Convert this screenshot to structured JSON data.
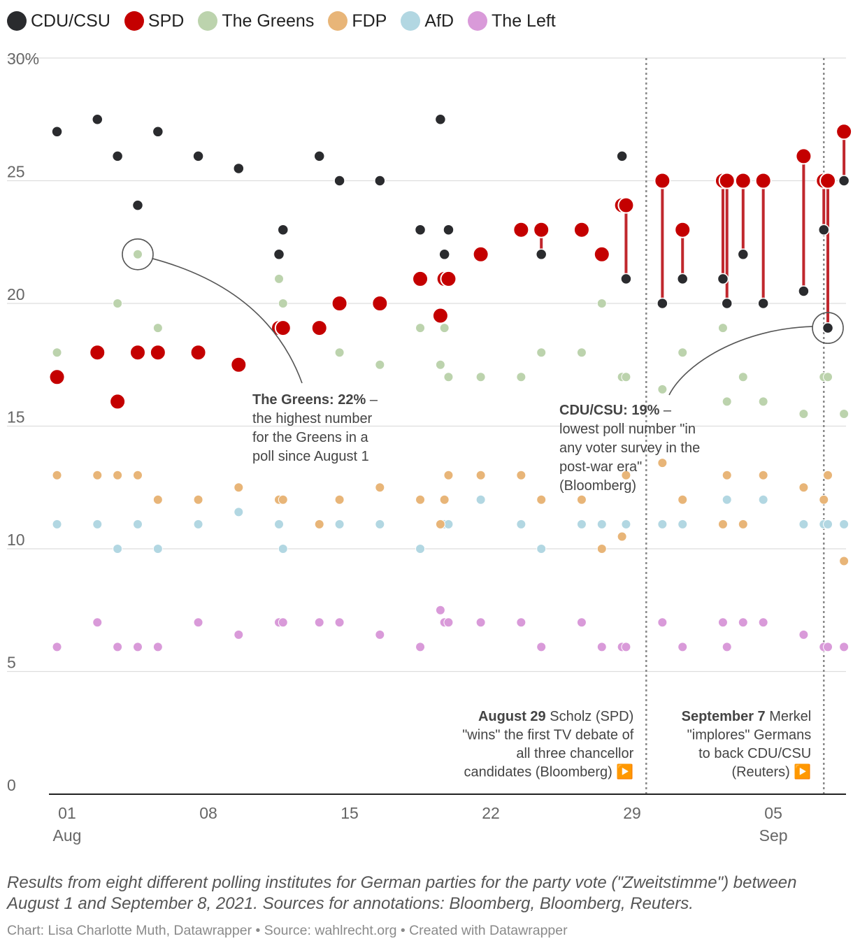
{
  "colors": {
    "CDU/CSU": "#2a2b2e",
    "SPD": "#c40000",
    "The Greens": "#bcd3ad",
    "FDP": "#e8b578",
    "AfD": "#b2d7e2",
    "The Left": "#d99ad9",
    "connector": "#c0272d",
    "grid": "#dddddd",
    "axis": "#222222",
    "annotation_line": "#555555"
  },
  "legend": [
    {
      "name": "CDU/CSU",
      "color": "#2a2b2e"
    },
    {
      "name": "SPD",
      "color": "#c40000"
    },
    {
      "name": "The Greens",
      "color": "#bcd3ad"
    },
    {
      "name": "FDP",
      "color": "#e8b578"
    },
    {
      "name": "AfD",
      "color": "#b2d7e2"
    },
    {
      "name": "The Left",
      "color": "#d99ad9"
    }
  ],
  "chart_data": {
    "type": "scatter",
    "title": "",
    "ylabel": "",
    "ylim": [
      0,
      30
    ],
    "yticks": [
      0,
      5,
      10,
      15,
      20,
      25,
      30
    ],
    "ytick_labels": [
      "0",
      "5",
      "10",
      "15",
      "20",
      "25",
      "30%"
    ],
    "xlim": [
      -0.9,
      38.6
    ],
    "xticks": [
      {
        "day": 0,
        "label": "01",
        "sublabel": "Aug"
      },
      {
        "day": 7,
        "label": "08",
        "sublabel": ""
      },
      {
        "day": 14,
        "label": "15",
        "sublabel": ""
      },
      {
        "day": 21,
        "label": "22",
        "sublabel": ""
      },
      {
        "day": 28,
        "label": "29",
        "sublabel": ""
      },
      {
        "day": 35,
        "label": "05",
        "sublabel": "Sep"
      }
    ],
    "x_unit": "days since Aug 1, 2021",
    "polls": [
      {
        "day": -0.5,
        "CDU/CSU": 27,
        "SPD": 17,
        "The Greens": 18,
        "FDP": 13,
        "AfD": 11,
        "The Left": 6
      },
      {
        "day": 1.5,
        "CDU/CSU": 27.5,
        "SPD": 18,
        "The Greens": null,
        "FDP": 13,
        "AfD": 11,
        "The Left": 7
      },
      {
        "day": 2.5,
        "CDU/CSU": 26,
        "SPD": 16,
        "The Greens": 20,
        "FDP": 13,
        "AfD": 10,
        "The Left": 6
      },
      {
        "day": 3.5,
        "CDU/CSU": 24,
        "SPD": 18,
        "The Greens": 22,
        "FDP": 13,
        "AfD": 11,
        "The Left": 6
      },
      {
        "day": 4.5,
        "CDU/CSU": 27,
        "SPD": 18,
        "The Greens": 19,
        "FDP": 12,
        "AfD": 10,
        "The Left": 6
      },
      {
        "day": 6.5,
        "CDU/CSU": 26,
        "SPD": 18,
        "The Greens": null,
        "FDP": 12,
        "AfD": 11,
        "The Left": 7
      },
      {
        "day": 8.5,
        "CDU/CSU": 25.5,
        "SPD": 17.5,
        "The Greens": null,
        "FDP": 12.5,
        "AfD": 11.5,
        "The Left": 6.5
      },
      {
        "day": 10.5,
        "CDU/CSU": 22,
        "SPD": 19,
        "The Greens": 21,
        "FDP": 12,
        "AfD": 11,
        "The Left": 7
      },
      {
        "day": 10.7,
        "CDU/CSU": 23,
        "SPD": 19,
        "The Greens": 20,
        "FDP": 12,
        "AfD": 10,
        "The Left": 7
      },
      {
        "day": 12.5,
        "CDU/CSU": 26,
        "SPD": 19,
        "The Greens": null,
        "FDP": 11,
        "AfD": null,
        "The Left": 7
      },
      {
        "day": 13.5,
        "CDU/CSU": 25,
        "SPD": 20,
        "The Greens": 18,
        "FDP": 12,
        "AfD": 11,
        "The Left": 7
      },
      {
        "day": 15.5,
        "CDU/CSU": 25,
        "SPD": 20,
        "The Greens": 17.5,
        "FDP": 12.5,
        "AfD": 11,
        "The Left": 6.5
      },
      {
        "day": 17.5,
        "CDU/CSU": 23,
        "SPD": 21,
        "The Greens": 19,
        "FDP": 12,
        "AfD": 10,
        "The Left": 6
      },
      {
        "day": 18.5,
        "CDU/CSU": 27.5,
        "SPD": 19.5,
        "The Greens": 17.5,
        "FDP": 11,
        "AfD": null,
        "The Left": 7.5
      },
      {
        "day": 18.7,
        "CDU/CSU": 22,
        "SPD": 21,
        "The Greens": 19,
        "FDP": 12,
        "AfD": 11,
        "The Left": 7
      },
      {
        "day": 18.9,
        "CDU/CSU": 23,
        "SPD": 21,
        "The Greens": 17,
        "FDP": 13,
        "AfD": 11,
        "The Left": 7
      },
      {
        "day": 20.5,
        "CDU/CSU": 22,
        "SPD": 22,
        "The Greens": 17,
        "FDP": 13,
        "AfD": 12,
        "The Left": 7
      },
      {
        "day": 22.5,
        "CDU/CSU": 23,
        "SPD": 23,
        "The Greens": 17,
        "FDP": 13,
        "AfD": 11,
        "The Left": 7
      },
      {
        "day": 23.5,
        "CDU/CSU": 22,
        "SPD": 23,
        "The Greens": 18,
        "FDP": 12,
        "AfD": 10,
        "The Left": 6
      },
      {
        "day": 25.5,
        "CDU/CSU": 23,
        "SPD": 23,
        "The Greens": 18,
        "FDP": 12,
        "AfD": 11,
        "The Left": 7
      },
      {
        "day": 26.5,
        "CDU/CSU": 22,
        "SPD": 22,
        "The Greens": 20,
        "FDP": 10,
        "AfD": 11,
        "The Left": 6
      },
      {
        "day": 27.5,
        "CDU/CSU": 26,
        "SPD": 24,
        "The Greens": 17,
        "FDP": 10.5,
        "AfD": null,
        "The Left": 6
      },
      {
        "day": 27.7,
        "CDU/CSU": 21,
        "SPD": 24,
        "The Greens": 17,
        "FDP": 13,
        "AfD": 11,
        "The Left": 6
      },
      {
        "day": 29.5,
        "CDU/CSU": 20,
        "SPD": 25,
        "The Greens": 16.5,
        "FDP": 13.5,
        "AfD": 11,
        "The Left": 7
      },
      {
        "day": 30.5,
        "CDU/CSU": 21,
        "SPD": 23,
        "The Greens": 18,
        "FDP": 12,
        "AfD": 11,
        "The Left": 6
      },
      {
        "day": 32.5,
        "CDU/CSU": 21,
        "SPD": 25,
        "The Greens": 19,
        "FDP": 11,
        "AfD": null,
        "The Left": 7
      },
      {
        "day": 32.7,
        "CDU/CSU": 20,
        "SPD": 25,
        "The Greens": 16,
        "FDP": 13,
        "AfD": 12,
        "The Left": 6
      },
      {
        "day": 33.5,
        "CDU/CSU": 22,
        "SPD": 25,
        "The Greens": 17,
        "FDP": 11,
        "AfD": null,
        "The Left": 7
      },
      {
        "day": 34.5,
        "CDU/CSU": 20,
        "SPD": 25,
        "The Greens": 16,
        "FDP": 13,
        "AfD": 12,
        "The Left": 7
      },
      {
        "day": 36.5,
        "CDU/CSU": 20.5,
        "SPD": 26,
        "The Greens": 15.5,
        "FDP": 12.5,
        "AfD": 11,
        "The Left": 6.5
      },
      {
        "day": 37.5,
        "CDU/CSU": 23,
        "SPD": 25,
        "The Greens": 17,
        "FDP": 12,
        "AfD": 11,
        "The Left": 6
      },
      {
        "day": 37.7,
        "CDU/CSU": 19,
        "SPD": 25,
        "The Greens": 17,
        "FDP": 13,
        "AfD": 11,
        "The Left": 6
      },
      {
        "day": 38.5,
        "CDU/CSU": 25,
        "SPD": 27,
        "The Greens": 15.5,
        "FDP": 9.5,
        "AfD": 11,
        "The Left": 6
      }
    ],
    "connector_rule": "SPD >= CDU/CSU",
    "event_lines": [
      {
        "day": 28.7,
        "bold": "August 29",
        "lines": [
          "Scholz (SPD)",
          "\"wins\" the first TV debate of",
          "all three chancellor",
          "candidates (Bloomberg) ▶️"
        ]
      },
      {
        "day": 37.5,
        "bold": "September 7",
        "lines": [
          "Merkel",
          "\"implores\" Germans",
          "to back CDU/CSU",
          "(Reuters) ▶️"
        ]
      }
    ],
    "annotations": [
      {
        "target_day": 3.5,
        "target_value": 22,
        "bold": "The Greens: 22%",
        "lines": [
          " –",
          "the highest number",
          "for the Greens in a",
          "poll since August 1"
        ]
      },
      {
        "target_day": 37.7,
        "target_value": 19,
        "bold": "CDU/CSU: 19%",
        "lines": [
          " –",
          "lowest poll number \"in",
          "any voter survey in the",
          "post-war era\"",
          "(Bloomberg)"
        ]
      }
    ]
  },
  "caption": "Results from eight different polling institutes for German parties for the party vote (\"Zweitstimme\") between August 1 and September 8, 2021. Sources for annotations: Bloomberg, Bloomberg, Reuters.",
  "footer": "Chart: Lisa Charlotte Muth, Datawrapper • Source: wahlrecht.org • Created with Datawrapper"
}
